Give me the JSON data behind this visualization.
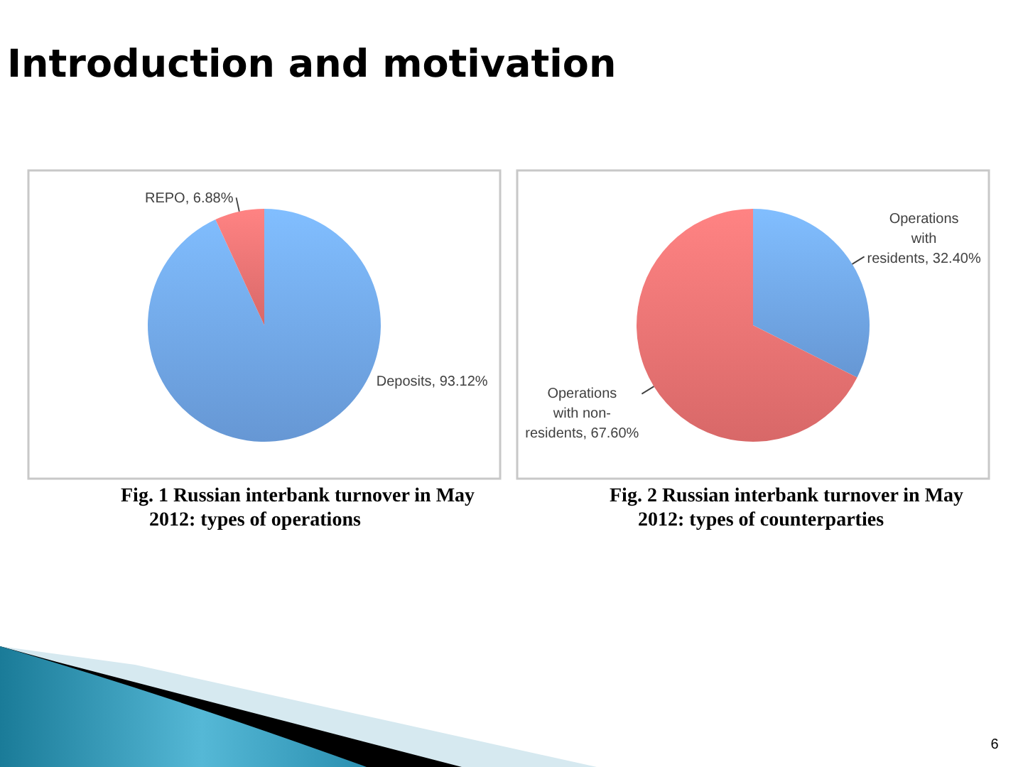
{
  "chart_data": [
    {
      "type": "other",
      "title": "Introduction and motivation",
      "annotations": [
        "6"
      ]
    },
    {
      "type": "pie",
      "title": "Fig. 1 Russian interbank turnover in May 2012: types of operations",
      "categories": [
        "Deposits",
        "REPO"
      ],
      "values": [
        93.12,
        6.88
      ],
      "colors": [
        "#72a8ec",
        "#f07474"
      ],
      "value_labels": [
        "93.12%",
        "6.88%"
      ]
    },
    {
      "type": "pie",
      "title": "Fig. 2 Russian interbank turnover in May 2012: types of counterparties",
      "categories": [
        "Operations with residents",
        "Operations with non-residents"
      ],
      "values": [
        32.4,
        67.6
      ],
      "colors": [
        "#72a8ec",
        "#f07474"
      ],
      "value_labels": [
        "32.40%",
        "67.60%"
      ]
    }
  ]
}
